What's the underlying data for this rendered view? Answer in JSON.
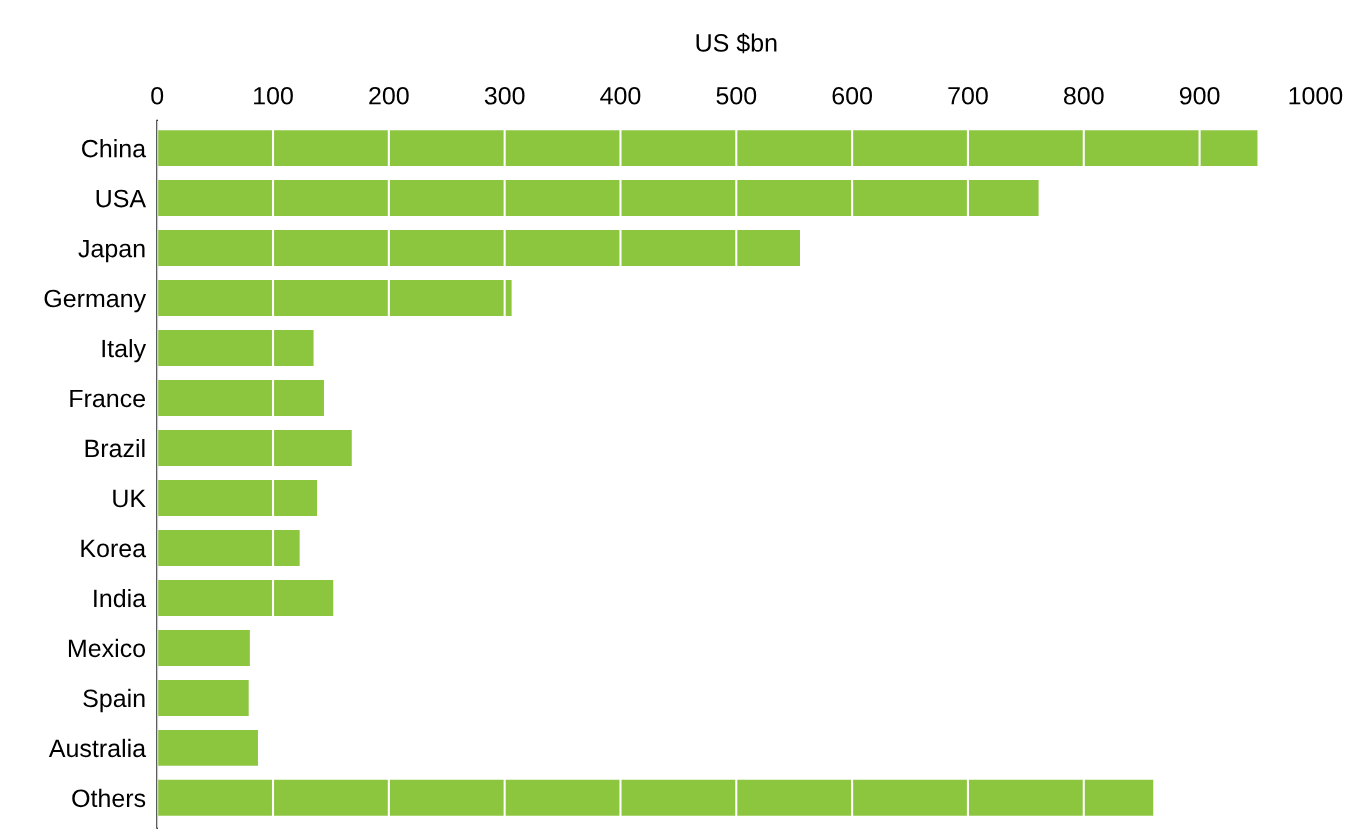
{
  "chart_data": {
    "type": "bar",
    "orientation": "horizontal",
    "xlabel": "US $bn",
    "categories": [
      "China",
      "USA",
      "Japan",
      "Germany",
      "Italy",
      "France",
      "Brazil",
      "UK",
      "Korea",
      "India",
      "Mexico",
      "Spain",
      "Australia",
      "Others"
    ],
    "values": [
      950,
      761,
      555,
      306,
      135,
      144,
      168,
      138,
      123,
      152,
      80,
      79,
      87,
      860
    ],
    "color": "#8cc63f",
    "xlim": [
      0,
      1000
    ],
    "xticks": [
      0,
      100,
      200,
      300,
      400,
      500,
      600,
      700,
      800,
      900,
      1000
    ],
    "grid": "x"
  }
}
